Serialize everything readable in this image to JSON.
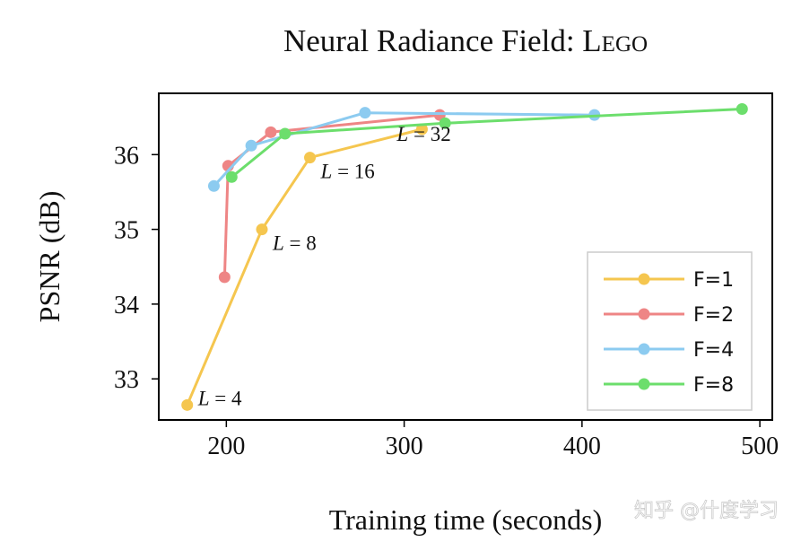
{
  "chart_data": {
    "type": "line",
    "title_main": "Neural Radiance Field: ",
    "title_scene": "Lego",
    "xlabel": "Training time (seconds)",
    "ylabel": "PSNR (dB)",
    "xlim": [
      162,
      507
    ],
    "ylim": [
      32.45,
      36.82
    ],
    "xticks": [
      200,
      300,
      400,
      500
    ],
    "yticks": [
      33,
      34,
      35,
      36
    ],
    "grid": false,
    "legend_position": "bottom-right",
    "series": [
      {
        "name": "F=1",
        "color": "#f5c64f",
        "points": [
          [
            178,
            32.65
          ],
          [
            220,
            35.0
          ],
          [
            247,
            35.96
          ],
          [
            310,
            36.34
          ]
        ]
      },
      {
        "name": "F=2",
        "color": "#ee8585",
        "points": [
          [
            199,
            34.36
          ],
          [
            201,
            35.85
          ],
          [
            225,
            36.3
          ],
          [
            320,
            36.53
          ]
        ]
      },
      {
        "name": "F=4",
        "color": "#8ccbf0",
        "points": [
          [
            193,
            35.58
          ],
          [
            214,
            36.12
          ],
          [
            278,
            36.56
          ],
          [
            407,
            36.53
          ]
        ]
      },
      {
        "name": "F=8",
        "color": "#6cde6c",
        "points": [
          [
            203,
            35.7
          ],
          [
            233,
            36.28
          ],
          [
            323,
            36.42
          ],
          [
            490,
            36.61
          ]
        ]
      }
    ],
    "annotations": [
      {
        "var": "L",
        "text": " = 4",
        "x": 178,
        "y": 32.65
      },
      {
        "var": "L",
        "text": " = 8",
        "x": 220,
        "y": 35.0
      },
      {
        "var": "L",
        "text": " = 16",
        "x": 247,
        "y": 35.96
      },
      {
        "var": "L",
        "text": " = 32",
        "x": 310,
        "y": 36.34
      }
    ]
  },
  "watermark": "知乎 @什度学习"
}
